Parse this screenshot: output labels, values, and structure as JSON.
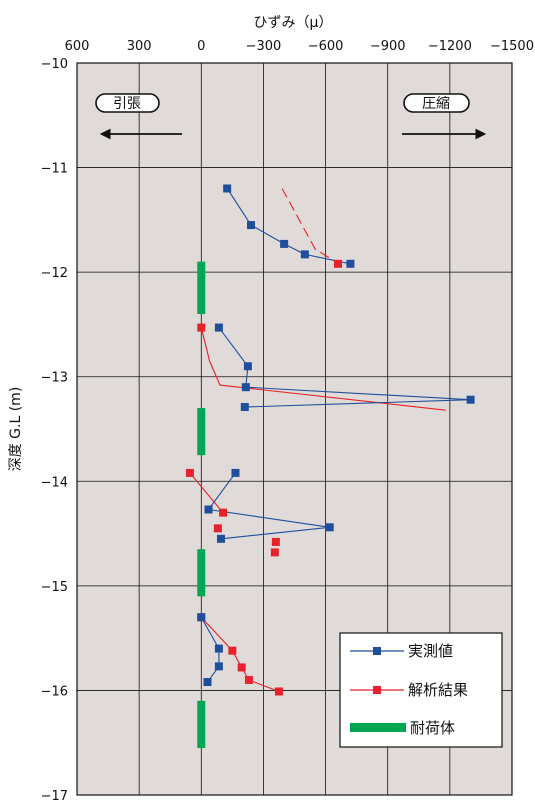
{
  "chart_data": {
    "type": "scatter",
    "title": "",
    "xlabel": "ひずみ（μ）",
    "ylabel": "深度 G.L (m)",
    "x_reversed": true,
    "xlim": [
      600,
      -1500
    ],
    "ylim": [
      -17,
      -10
    ],
    "x_ticks": [
      600,
      300,
      0,
      -300,
      -600,
      -900,
      -1200,
      -1500
    ],
    "x_tick_labels": [
      "600",
      "300",
      "0",
      "−300",
      "−600",
      "−900",
      "−1200",
      "−1500"
    ],
    "y_ticks": [
      -10,
      -11,
      -12,
      -13,
      -14,
      -15,
      -16,
      -17
    ],
    "y_tick_labels": [
      "−10",
      "−11",
      "−12",
      "−13",
      "−14",
      "−15",
      "−16",
      "−17"
    ],
    "grid": true,
    "legend_position": "bottom-right",
    "annotations": [
      {
        "text": "引張",
        "direction": "left"
      },
      {
        "text": "圧縮",
        "direction": "right"
      }
    ],
    "series": [
      {
        "name": "実測値",
        "color": "#1f4e9c",
        "marker": "square",
        "segments": [
          [
            [
              -125,
              -11.2
            ],
            [
              -240,
              -11.55
            ],
            [
              -400,
              -11.73
            ],
            [
              -500,
              -11.83
            ],
            [
              -720,
              -11.92
            ]
          ],
          [
            [
              -85,
              -12.53
            ],
            [
              -225,
              -12.9
            ],
            [
              -215,
              -13.1
            ],
            [
              -1300,
              -13.22
            ],
            [
              -210,
              -13.29
            ]
          ],
          [
            [
              -165,
              -13.92
            ],
            [
              -35,
              -14.27
            ],
            [
              -620,
              -14.44
            ],
            [
              -95,
              -14.55
            ]
          ],
          [
            [
              0,
              -15.3
            ],
            [
              -85,
              -15.6
            ],
            [
              -85,
              -15.77
            ],
            [
              -30,
              -15.92
            ]
          ]
        ]
      },
      {
        "name": "解析結果",
        "color": "#e8212a",
        "marker": "square",
        "segments": [
          [
            [
              -660,
              -11.92
            ]
          ],
          [
            [
              0,
              -12.53
            ]
          ],
          [
            [
              55,
              -13.92
            ],
            [
              -105,
              -14.3
            ],
            [
              -80,
              -14.45
            ],
            [
              -360,
              -14.58
            ],
            [
              -355,
              -14.68
            ]
          ],
          [
            [
              0,
              -15.3
            ],
            [
              -150,
              -15.62
            ],
            [
              -195,
              -15.78
            ],
            [
              -230,
              -15.9
            ],
            [
              -375,
              -16.01
            ]
          ]
        ],
        "lines": [
          [
            [
              -390,
              -11.2
            ],
            [
              -550,
              -11.78
            ],
            [
              -665,
              -11.92
            ]
          ],
          [
            [
              0,
              -12.53
            ],
            [
              -40,
              -12.85
            ],
            [
              -90,
              -13.08
            ],
            [
              -1180,
              -13.32
            ]
          ],
          [
            [
              55,
              -13.92
            ],
            [
              -105,
              -14.3
            ]
          ],
          [
            [
              0,
              -15.3
            ],
            [
              -150,
              -15.62
            ],
            [
              -195,
              -15.78
            ],
            [
              -230,
              -15.9
            ],
            [
              -375,
              -16.01
            ]
          ]
        ]
      },
      {
        "name": "耐荷体",
        "color": "#00a651",
        "marker": "bar",
        "ranges": [
          {
            "x": 0,
            "y_top": -11.9,
            "y_bottom": -12.4
          },
          {
            "x": 0,
            "y_top": -13.3,
            "y_bottom": -13.75
          },
          {
            "x": 0,
            "y_top": -14.65,
            "y_bottom": -15.1
          },
          {
            "x": 0,
            "y_top": -16.1,
            "y_bottom": -16.55
          }
        ]
      }
    ]
  }
}
